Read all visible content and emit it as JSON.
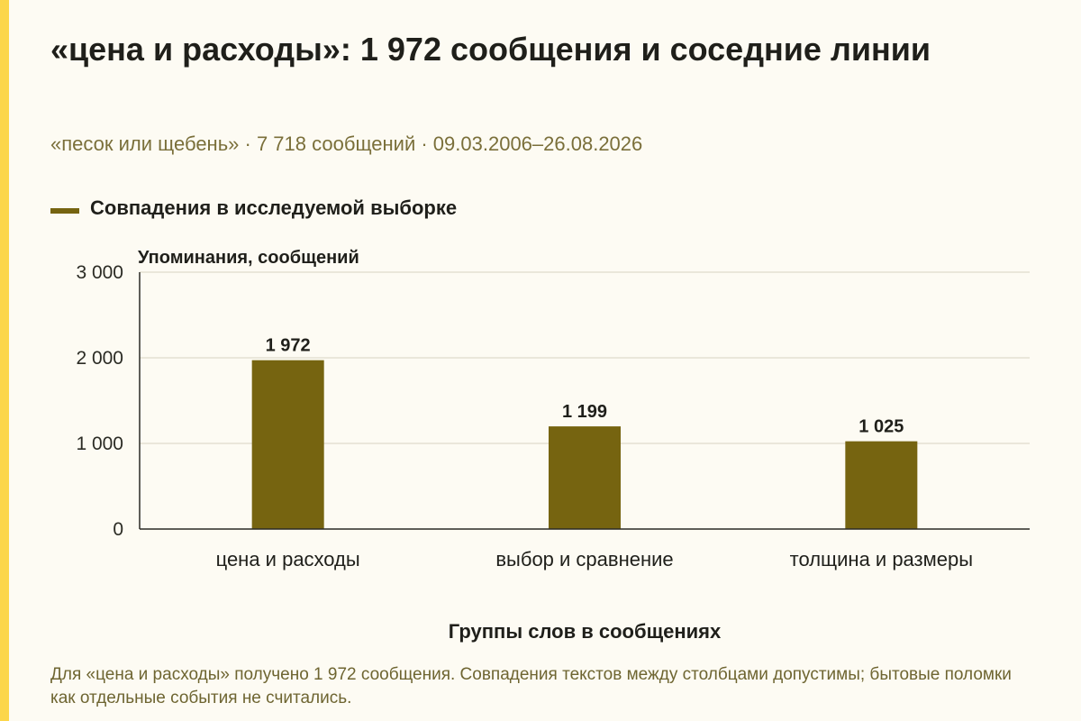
{
  "title": "«цена и расходы»: 1 972 сообщения и соседние линии",
  "subtitle": "«песок или щебень» · 7 718 сообщений · 09.03.2006–26.08.2026",
  "legend": {
    "label": "Совпадения в исследуемой выборке"
  },
  "note": "Для «цена и расходы» получено 1 972 сообщения. Совпадения текстов между столбцами допустимы; бытовые поломки как отдельные события не считались.",
  "colors": {
    "accent_stripe": "#fcd64a",
    "bar": "#766410",
    "subtitle_text": "#7a6f3a",
    "note_text": "#6e6531",
    "gridline": "#d8d3c2",
    "axis": "#2b2b24"
  },
  "chart_data": {
    "type": "bar",
    "categories": [
      "цена и расходы",
      "выбор и сравнение",
      "толщина и размеры"
    ],
    "values": [
      1972,
      1199,
      1025
    ],
    "value_labels": [
      "1 972",
      "1 199",
      "1 025"
    ],
    "xlabel": "Группы слов в сообщениях",
    "ylabel": "Упоминания, сообщений",
    "ylim": [
      0,
      3000
    ],
    "yticks": [
      0,
      1000,
      2000,
      3000
    ],
    "ytick_labels": [
      "0",
      "1 000",
      "2 000",
      "3 000"
    ],
    "grid": true,
    "legend_position": "top-left"
  }
}
